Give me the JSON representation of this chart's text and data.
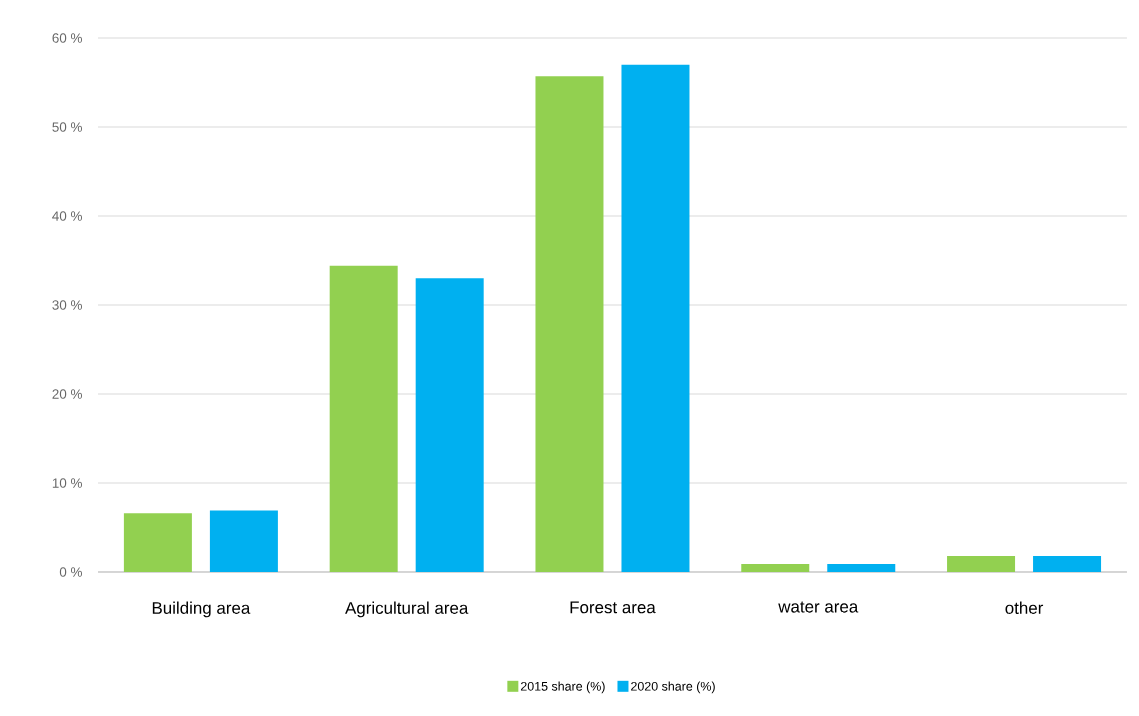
{
  "chart_data": {
    "type": "bar",
    "categories": [
      "Building area",
      "Agricultural area",
      "Forest area",
      "water area",
      "other"
    ],
    "series": [
      {
        "name": "2015 share (%)",
        "color": "#92d050",
        "values": [
          6.6,
          34.4,
          55.7,
          0.9,
          1.8
        ]
      },
      {
        "name": "2020 share (%)",
        "color": "#00b0f0",
        "values": [
          6.9,
          33.0,
          57.0,
          0.9,
          1.8
        ]
      }
    ],
    "ylim": [
      0,
      60
    ],
    "yticks": [
      {
        "value": 0,
        "label": "0 %"
      },
      {
        "value": 10,
        "label": "10 %"
      },
      {
        "value": 20,
        "label": "20 %"
      },
      {
        "value": 30,
        "label": "30 %"
      },
      {
        "value": 40,
        "label": "40 %"
      },
      {
        "value": 50,
        "label": "50 %"
      },
      {
        "value": 60,
        "label": "60 %"
      }
    ],
    "grid": "y",
    "legend": "bottom"
  }
}
